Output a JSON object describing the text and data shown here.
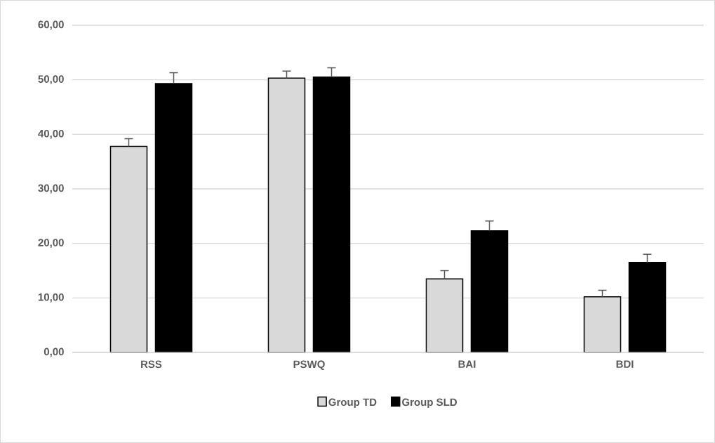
{
  "chart_data": {
    "type": "bar",
    "categories": [
      "RSS",
      "PSWQ",
      "BAI",
      "BDI"
    ],
    "series": [
      {
        "name": "Group TD",
        "color": "#d9d9d9",
        "values": [
          37.8,
          50.3,
          13.5,
          10.2
        ],
        "errors": [
          [
            37.8,
            39.2
          ],
          [
            50.3,
            51.6
          ],
          [
            13.5,
            15.0
          ],
          [
            10.2,
            11.4
          ]
        ]
      },
      {
        "name": "Group SLD",
        "color": "#000000",
        "values": [
          49.3,
          50.5,
          22.3,
          16.5
        ],
        "errors": [
          [
            49.3,
            51.3
          ],
          [
            50.5,
            52.2
          ],
          [
            22.3,
            24.1
          ],
          [
            16.5,
            18.0
          ]
        ]
      }
    ],
    "ylim": [
      0,
      60
    ],
    "yticks": [
      {
        "value": 0,
        "label": "0,00"
      },
      {
        "value": 10,
        "label": "10,00"
      },
      {
        "value": 20,
        "label": "20,00"
      },
      {
        "value": 30,
        "label": "30,00"
      },
      {
        "value": 40,
        "label": "40,00"
      },
      {
        "value": 50,
        "label": "50,00"
      },
      {
        "value": 60,
        "label": "60,00"
      }
    ],
    "grid": "y",
    "legend": "bottom"
  }
}
